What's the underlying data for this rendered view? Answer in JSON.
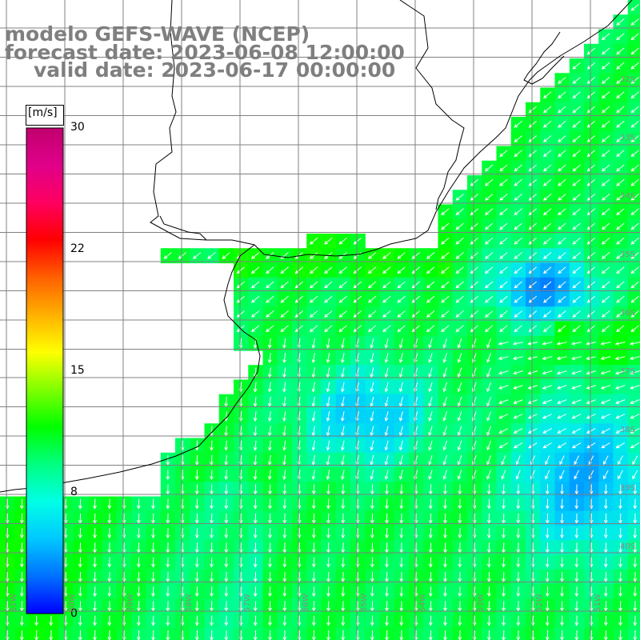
{
  "title": {
    "line1": "modelo GEFS-WAVE (NCEP)",
    "line2": "forecast date: 2023-06-08 12:00:00",
    "line3": "valid date: 2023-06-17 00:00:00"
  },
  "colorbar": {
    "unit": "[m/s]",
    "ticks": [
      "30",
      "22",
      "15",
      "8",
      "0"
    ],
    "colors": [
      "#0000ff",
      "#0070ff",
      "#00c8ff",
      "#00ffe6",
      "#00ff80",
      "#00ff00",
      "#80ff00",
      "#ffff00",
      "#ffb000",
      "#ff6000",
      "#ff0000",
      "#ff0060",
      "#e0008a",
      "#c0006e"
    ]
  },
  "lat_labels": [
    "32S",
    "33S",
    "34S",
    "35S",
    "36S",
    "37S",
    "38S",
    "39S",
    "40S"
  ],
  "lon_labels": [
    "61W",
    "60W",
    "59W",
    "58W",
    "57W",
    "56W",
    "55W",
    "54W",
    "53W",
    "52W",
    "51W"
  ],
  "colors": {
    "land": "#ffffff",
    "grid": "#808080",
    "coast": "#000000",
    "arrow": "#ffffff"
  }
}
